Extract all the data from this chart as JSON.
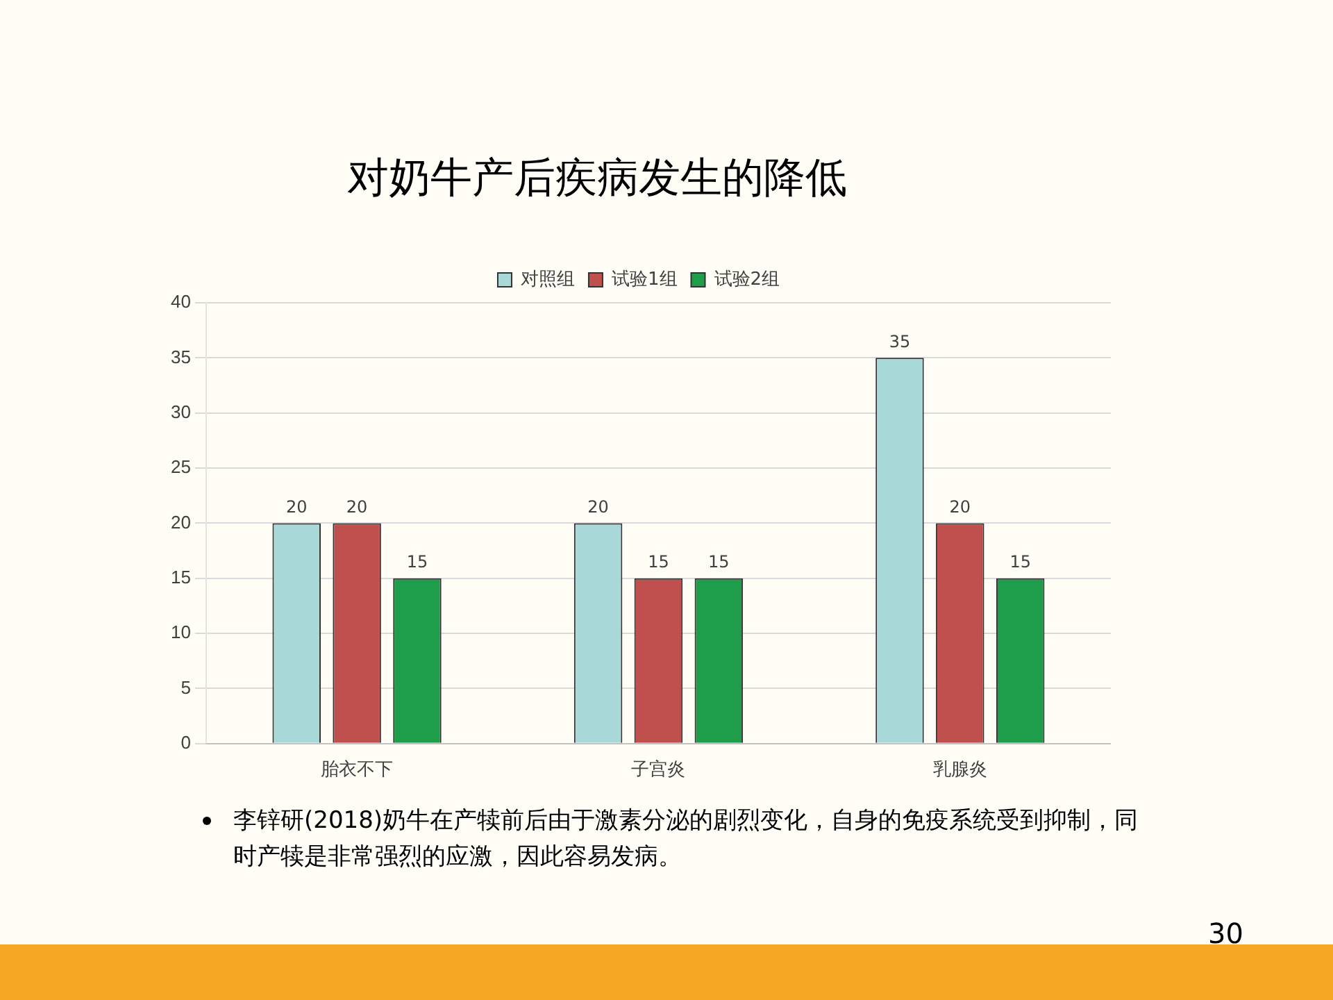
{
  "chart_data": {
    "type": "bar",
    "title": "对奶牛产后疾病发生的降低",
    "categories": [
      "胎衣不下",
      "子宫炎",
      "乳腺炎"
    ],
    "series": [
      {
        "name": "对照组",
        "color": "#a9d8d8",
        "values": [
          20,
          20,
          35
        ]
      },
      {
        "name": "试验1组",
        "color": "#c0504d",
        "values": [
          20,
          15,
          20
        ]
      },
      {
        "name": "试验2组",
        "color": "#1e9e4a",
        "values": [
          15,
          15,
          15
        ]
      }
    ],
    "ylim": [
      0,
      40
    ],
    "yticks": [
      0,
      5,
      10,
      15,
      20,
      25,
      30,
      35,
      40
    ],
    "grid": "y",
    "legend": "top",
    "data_labels": true,
    "annotations": [
      "李锌研(2018)奶牛在产犊前后由于激素分泌的剧烈变化，自身的免疫系统受到抑制，同时产犊是非常强烈的应激，因此容易发病。",
      "30"
    ]
  }
}
